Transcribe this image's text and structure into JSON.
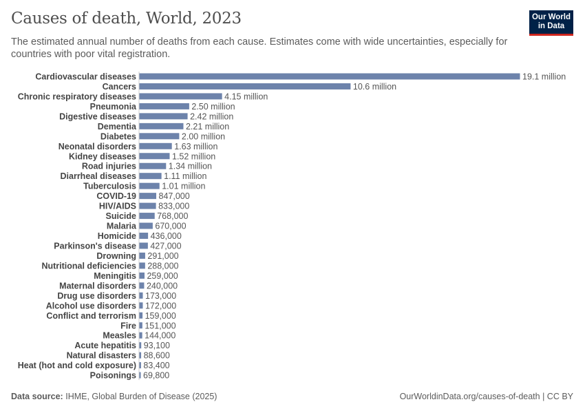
{
  "header": {
    "title": "Causes of death, World, 2023",
    "subtitle": "The estimated annual number of deaths from each cause. Estimates come with wide uncertainties, especially for countries with poor vital registration.",
    "logo_line1": "Our World",
    "logo_line2": "in Data"
  },
  "footer": {
    "source_label": "Data source:",
    "source": "IHME, Global Burden of Disease (2025)",
    "link": "OurWorldinData.org/causes-of-death | CC BY"
  },
  "colors": {
    "bar": "#6d83ab",
    "logo_bg": "#002147",
    "logo_accent": "#ce261e"
  },
  "chart_data": {
    "type": "bar",
    "orientation": "horizontal",
    "title": "Causes of death, World, 2023",
    "xlabel": "",
    "ylabel": "",
    "categories": [
      "Cardiovascular diseases",
      "Cancers",
      "Chronic respiratory diseases",
      "Pneumonia",
      "Digestive diseases",
      "Dementia",
      "Diabetes",
      "Neonatal disorders",
      "Kidney diseases",
      "Road injuries",
      "Diarrheal diseases",
      "Tuberculosis",
      "COVID-19",
      "HIV/AIDS",
      "Suicide",
      "Malaria",
      "Homicide",
      "Parkinson's disease",
      "Drowning",
      "Nutritional deficiencies",
      "Meningitis",
      "Maternal disorders",
      "Drug use disorders",
      "Alcohol use disorders",
      "Conflict and terrorism",
      "Fire",
      "Measles",
      "Acute hepatitis",
      "Natural disasters",
      "Heat (hot and cold exposure)",
      "Poisonings"
    ],
    "values": [
      19100000,
      10600000,
      4150000,
      2500000,
      2420000,
      2210000,
      2000000,
      1630000,
      1520000,
      1340000,
      1110000,
      1010000,
      847000,
      833000,
      768000,
      670000,
      436000,
      427000,
      291000,
      288000,
      259000,
      240000,
      173000,
      172000,
      159000,
      151000,
      144000,
      93100,
      88600,
      83400,
      69800
    ],
    "value_labels": [
      "19.1 million",
      "10.6 million",
      "4.15 million",
      "2.50 million",
      "2.42 million",
      "2.21 million",
      "2.00 million",
      "1.63 million",
      "1.52 million",
      "1.34 million",
      "1.11 million",
      "1.01 million",
      "847,000",
      "833,000",
      "768,000",
      "670,000",
      "436,000",
      "427,000",
      "291,000",
      "288,000",
      "259,000",
      "240,000",
      "173,000",
      "172,000",
      "159,000",
      "151,000",
      "144,000",
      "93,100",
      "88,600",
      "83,400",
      "69,800"
    ],
    "grid": false
  }
}
